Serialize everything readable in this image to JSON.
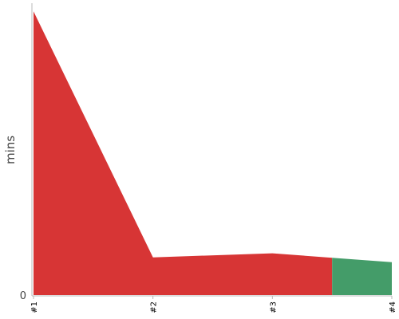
{
  "chart_data": {
    "type": "area",
    "categories": [
      "#1",
      "#2",
      "#3",
      "#4"
    ],
    "x": [
      1,
      2,
      3,
      4
    ],
    "ylabel": "mins",
    "xlabel": "",
    "y_ticks": [
      "0"
    ],
    "ylim": [
      0,
      72
    ],
    "grid": false,
    "series": [
      {
        "color": "#d73535",
        "points": [
          [
            1,
            70
          ],
          [
            2,
            9.3
          ],
          [
            3,
            10.3
          ],
          [
            3.5,
            9.2
          ]
        ]
      },
      {
        "color": "#449c69",
        "points": [
          [
            3.5,
            9.2
          ],
          [
            4,
            8.1
          ]
        ]
      }
    ]
  }
}
